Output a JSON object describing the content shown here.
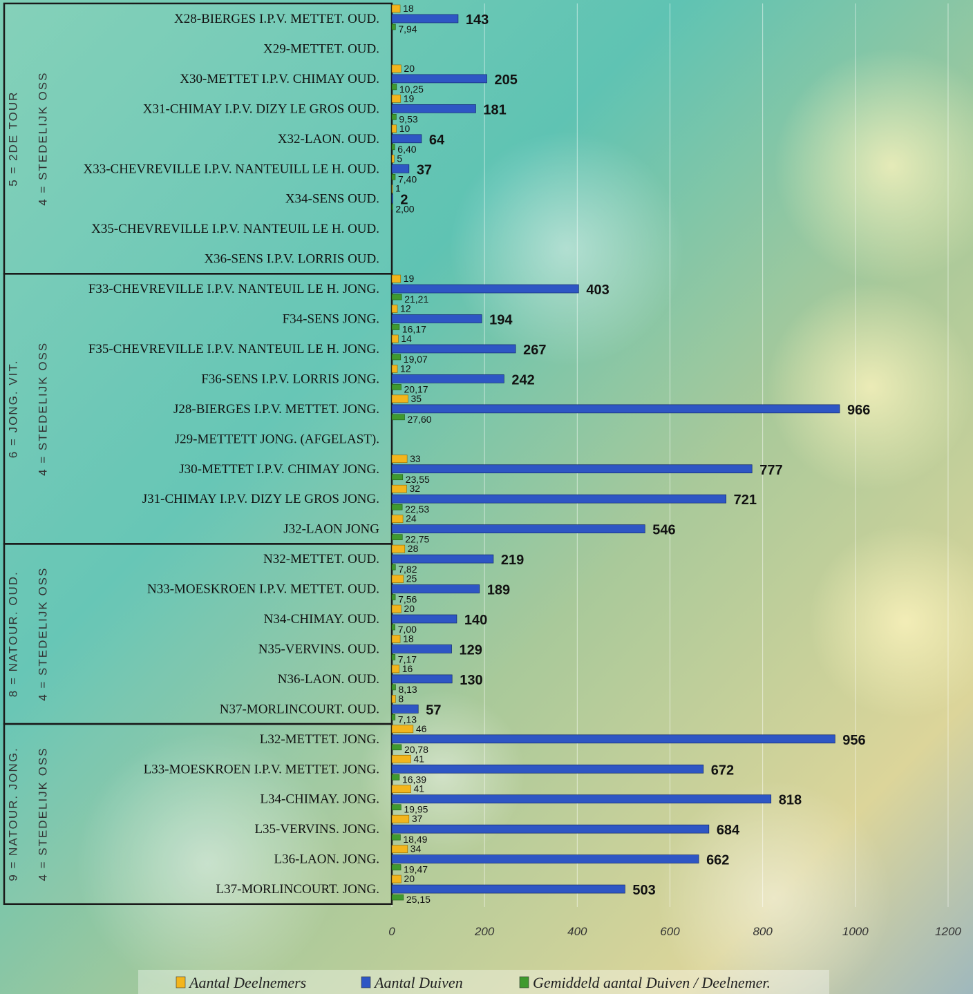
{
  "chart_data": {
    "type": "bar",
    "orientation": "horizontal",
    "xlim": [
      0,
      1200
    ],
    "x_ticks": [
      "0",
      "200",
      "400",
      "600",
      "800",
      "1000",
      "1200"
    ],
    "grid": "vertical",
    "legend_position": "bottom",
    "colors": {
      "Aantal Deelnemers": "#f3b51c",
      "Aantal Duiven": "#2e56c4",
      "Gemiddeld aantal Duiven / Deelnemer.": "#3f9a2e"
    },
    "series": [
      {
        "name": "Aantal Deelnemers"
      },
      {
        "name": "Aantal Duiven"
      },
      {
        "name": "Gemiddeld aantal Duiven / Deelnemer."
      }
    ],
    "groups": [
      {
        "outer": "5 = 2DE TOUR",
        "inner": "4 = STEDELIJK OSS",
        "first": 0,
        "last": 8
      },
      {
        "outer": "6 = JONG. VIT.",
        "inner": "4 = STEDELIJK OSS",
        "first": 9,
        "last": 17
      },
      {
        "outer": "8 = NATOUR. OUD.",
        "inner": "4 = STEDELIJK OSS",
        "first": 18,
        "last": 23
      },
      {
        "outer": "9 = NATOUR. JONG.",
        "inner": "4 = STEDELIJK OSS",
        "first": 24,
        "last": 29
      }
    ],
    "categories": [
      {
        "label": "X28-BIERGES I.P.V. METTET. OUD.",
        "deelnemers": 18,
        "duiven": 143,
        "gemiddeld": "7,94"
      },
      {
        "label": "X29-METTET. OUD.",
        "deelnemers": null,
        "duiven": null,
        "gemiddeld": null
      },
      {
        "label": "X30-METTET I.P.V. CHIMAY OUD.",
        "deelnemers": 20,
        "duiven": 205,
        "gemiddeld": "10,25"
      },
      {
        "label": "X31-CHIMAY I.P.V. DIZY LE GROS OUD.",
        "deelnemers": 19,
        "duiven": 181,
        "gemiddeld": "9,53"
      },
      {
        "label": "X32-LAON. OUD.",
        "deelnemers": 10,
        "duiven": 64,
        "gemiddeld": "6,40"
      },
      {
        "label": "X33-CHEVREVILLE I.P.V. NANTEUILL LE H.  OUD.",
        "deelnemers": 5,
        "duiven": 37,
        "gemiddeld": "7,40"
      },
      {
        "label": "X34-SENS OUD.",
        "deelnemers": 1,
        "duiven": 2,
        "gemiddeld": "2,00"
      },
      {
        "label": "X35-CHEVREVILLE I.P.V. NANTEUIL LE H. OUD.",
        "deelnemers": null,
        "duiven": null,
        "gemiddeld": null
      },
      {
        "label": "X36-SENS I.P.V. LORRIS OUD.",
        "deelnemers": null,
        "duiven": null,
        "gemiddeld": null
      },
      {
        "label": "F33-CHEVREVILLE I.P.V. NANTEUIL LE H. JONG.",
        "deelnemers": 19,
        "duiven": 403,
        "gemiddeld": "21,21"
      },
      {
        "label": "F34-SENS JONG.",
        "deelnemers": 12,
        "duiven": 194,
        "gemiddeld": "16,17"
      },
      {
        "label": "F35-CHEVREVILLE I.P.V. NANTEUIL LE H. JONG.",
        "deelnemers": 14,
        "duiven": 267,
        "gemiddeld": "19,07"
      },
      {
        "label": "F36-SENS I.P.V. LORRIS JONG.",
        "deelnemers": 12,
        "duiven": 242,
        "gemiddeld": "20,17"
      },
      {
        "label": "J28-BIERGES I.P.V. METTET. JONG.",
        "deelnemers": 35,
        "duiven": 966,
        "gemiddeld": "27,60"
      },
      {
        "label": "J29-METTETT JONG. (AFGELAST).",
        "deelnemers": null,
        "duiven": null,
        "gemiddeld": null
      },
      {
        "label": "J30-METTET I.P.V. CHIMAY JONG.",
        "deelnemers": 33,
        "duiven": 777,
        "gemiddeld": "23,55"
      },
      {
        "label": "J31-CHIMAY I.P.V. DIZY LE GROS JONG.",
        "deelnemers": 32,
        "duiven": 721,
        "gemiddeld": "22,53"
      },
      {
        "label": "J32-LAON JONG",
        "deelnemers": 24,
        "duiven": 546,
        "gemiddeld": "22,75"
      },
      {
        "label": "N32-METTET. OUD.",
        "deelnemers": 28,
        "duiven": 219,
        "gemiddeld": "7,82"
      },
      {
        "label": "N33-MOESKROEN I.P.V. METTET. OUD.",
        "deelnemers": 25,
        "duiven": 189,
        "gemiddeld": "7,56"
      },
      {
        "label": "N34-CHIMAY. OUD.",
        "deelnemers": 20,
        "duiven": 140,
        "gemiddeld": "7,00"
      },
      {
        "label": "N35-VERVINS. OUD.",
        "deelnemers": 18,
        "duiven": 129,
        "gemiddeld": "7,17"
      },
      {
        "label": "N36-LAON. OUD.",
        "deelnemers": 16,
        "duiven": 130,
        "gemiddeld": "8,13"
      },
      {
        "label": "N37-MORLINCOURT. OUD.",
        "deelnemers": 8,
        "duiven": 57,
        "gemiddeld": "7,13"
      },
      {
        "label": "L32-METTET. JONG.",
        "deelnemers": 46,
        "duiven": 956,
        "gemiddeld": "20,78"
      },
      {
        "label": "L33-MOESKROEN I.P.V. METTET. JONG.",
        "deelnemers": 41,
        "duiven": 672,
        "gemiddeld": "16,39"
      },
      {
        "label": "L34-CHIMAY. JONG.",
        "deelnemers": 41,
        "duiven": 818,
        "gemiddeld": "19,95"
      },
      {
        "label": "L35-VERVINS. JONG.",
        "deelnemers": 37,
        "duiven": 684,
        "gemiddeld": "18,49"
      },
      {
        "label": "L36-LAON. JONG.",
        "deelnemers": 34,
        "duiven": 662,
        "gemiddeld": "19,47"
      },
      {
        "label": "L37-MORLINCOURT. JONG.",
        "deelnemers": 20,
        "duiven": 503,
        "gemiddeld": "25,15"
      }
    ]
  }
}
